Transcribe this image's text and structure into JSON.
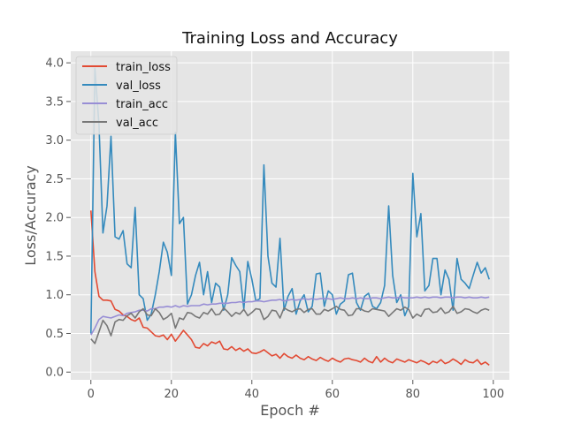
{
  "chart_data": {
    "type": "line",
    "title": "Training Loss and Accuracy",
    "xlabel": "Epoch #",
    "ylabel": "Loss/Accuracy",
    "xlim": [
      -5,
      104
    ],
    "ylim": [
      -0.1,
      4.15
    ],
    "xticks": [
      0,
      20,
      40,
      60,
      80,
      100
    ],
    "yticks": [
      0.0,
      0.5,
      1.0,
      1.5,
      2.0,
      2.5,
      3.0,
      3.5,
      4.0
    ],
    "ytick_labels": [
      "0.0",
      "0.5",
      "1.0",
      "1.5",
      "2.0",
      "2.5",
      "3.0",
      "3.5",
      "4.0"
    ],
    "grid": true,
    "legend_position": "top-left",
    "x": [
      0,
      1,
      2,
      3,
      4,
      5,
      6,
      7,
      8,
      9,
      10,
      11,
      12,
      13,
      14,
      15,
      16,
      17,
      18,
      19,
      20,
      21,
      22,
      23,
      24,
      25,
      26,
      27,
      28,
      29,
      30,
      31,
      32,
      33,
      34,
      35,
      36,
      37,
      38,
      39,
      40,
      41,
      42,
      43,
      44,
      45,
      46,
      47,
      48,
      49,
      50,
      51,
      52,
      53,
      54,
      55,
      56,
      57,
      58,
      59,
      60,
      61,
      62,
      63,
      64,
      65,
      66,
      67,
      68,
      69,
      70,
      71,
      72,
      73,
      74,
      75,
      76,
      77,
      78,
      79,
      80,
      81,
      82,
      83,
      84,
      85,
      86,
      87,
      88,
      89,
      90,
      91,
      92,
      93,
      94,
      95,
      96,
      97,
      98,
      99
    ],
    "series": [
      {
        "name": "train_loss",
        "color": "#E24A33",
        "values": [
          2.09,
          1.3,
          0.98,
          0.93,
          0.93,
          0.92,
          0.81,
          0.79,
          0.74,
          0.72,
          0.68,
          0.66,
          0.7,
          0.58,
          0.57,
          0.52,
          0.47,
          0.46,
          0.48,
          0.42,
          0.49,
          0.4,
          0.47,
          0.54,
          0.48,
          0.42,
          0.32,
          0.31,
          0.37,
          0.34,
          0.39,
          0.37,
          0.4,
          0.3,
          0.29,
          0.33,
          0.28,
          0.31,
          0.27,
          0.3,
          0.25,
          0.24,
          0.26,
          0.29,
          0.25,
          0.21,
          0.23,
          0.18,
          0.24,
          0.2,
          0.18,
          0.22,
          0.18,
          0.16,
          0.2,
          0.17,
          0.15,
          0.19,
          0.16,
          0.14,
          0.18,
          0.15,
          0.13,
          0.17,
          0.18,
          0.16,
          0.15,
          0.13,
          0.18,
          0.14,
          0.12,
          0.2,
          0.13,
          0.18,
          0.14,
          0.12,
          0.17,
          0.15,
          0.13,
          0.16,
          0.14,
          0.12,
          0.15,
          0.13,
          0.1,
          0.14,
          0.12,
          0.16,
          0.11,
          0.13,
          0.17,
          0.14,
          0.1,
          0.16,
          0.13,
          0.12,
          0.16,
          0.1,
          0.13,
          0.09
        ]
      },
      {
        "name": "val_loss",
        "color": "#348ABD",
        "values": [
          0.5,
          3.93,
          3.2,
          1.8,
          2.15,
          3.05,
          1.75,
          1.72,
          1.83,
          1.4,
          1.35,
          2.13,
          1.0,
          0.95,
          0.67,
          0.75,
          1.0,
          1.3,
          1.68,
          1.55,
          1.25,
          3.1,
          1.92,
          2.0,
          0.88,
          1.0,
          1.25,
          1.42,
          1.0,
          1.3,
          0.9,
          1.15,
          1.1,
          0.8,
          1.0,
          1.48,
          1.38,
          1.3,
          0.82,
          1.43,
          1.2,
          0.92,
          0.95,
          2.68,
          1.5,
          1.15,
          1.1,
          1.73,
          0.8,
          0.98,
          1.08,
          0.75,
          0.92,
          1.0,
          0.78,
          0.85,
          1.27,
          1.28,
          0.85,
          1.05,
          1.0,
          0.75,
          0.88,
          0.92,
          1.26,
          1.28,
          0.9,
          0.8,
          0.98,
          1.02,
          0.85,
          0.82,
          0.9,
          1.12,
          2.15,
          1.25,
          0.9,
          1.0,
          0.73,
          0.85,
          2.57,
          1.75,
          2.05,
          1.05,
          1.12,
          1.47,
          1.47,
          1.0,
          1.32,
          1.2,
          0.8,
          1.47,
          1.2,
          1.15,
          1.08,
          1.25,
          1.42,
          1.28,
          1.35,
          1.2
        ]
      },
      {
        "name": "train_acc",
        "color": "#988ED5",
        "values": [
          0.48,
          0.57,
          0.68,
          0.72,
          0.71,
          0.7,
          0.72,
          0.74,
          0.73,
          0.76,
          0.77,
          0.78,
          0.8,
          0.8,
          0.79,
          0.82,
          0.82,
          0.84,
          0.84,
          0.85,
          0.84,
          0.86,
          0.84,
          0.86,
          0.85,
          0.86,
          0.86,
          0.86,
          0.88,
          0.87,
          0.88,
          0.88,
          0.89,
          0.89,
          0.89,
          0.9,
          0.9,
          0.91,
          0.9,
          0.91,
          0.91,
          0.92,
          0.92,
          0.91,
          0.92,
          0.93,
          0.93,
          0.94,
          0.92,
          0.93,
          0.94,
          0.93,
          0.94,
          0.95,
          0.94,
          0.95,
          0.94,
          0.95,
          0.95,
          0.95,
          0.94,
          0.95,
          0.96,
          0.95,
          0.95,
          0.96,
          0.95,
          0.96,
          0.95,
          0.95,
          0.96,
          0.96,
          0.95,
          0.96,
          0.97,
          0.96,
          0.96,
          0.97,
          0.96,
          0.96,
          0.96,
          0.97,
          0.96,
          0.97,
          0.96,
          0.97,
          0.97,
          0.96,
          0.97,
          0.97,
          0.96,
          0.97,
          0.97,
          0.96,
          0.97,
          0.96,
          0.96,
          0.97,
          0.96,
          0.97
        ]
      },
      {
        "name": "val_acc",
        "color": "#777777",
        "values": [
          0.43,
          0.37,
          0.52,
          0.67,
          0.6,
          0.47,
          0.65,
          0.68,
          0.67,
          0.73,
          0.76,
          0.7,
          0.78,
          0.82,
          0.74,
          0.73,
          0.82,
          0.77,
          0.68,
          0.71,
          0.76,
          0.57,
          0.7,
          0.68,
          0.77,
          0.76,
          0.72,
          0.7,
          0.77,
          0.75,
          0.82,
          0.74,
          0.75,
          0.83,
          0.78,
          0.72,
          0.77,
          0.75,
          0.81,
          0.73,
          0.77,
          0.82,
          0.81,
          0.68,
          0.72,
          0.8,
          0.79,
          0.7,
          0.83,
          0.8,
          0.78,
          0.81,
          0.82,
          0.77,
          0.81,
          0.82,
          0.75,
          0.75,
          0.81,
          0.79,
          0.82,
          0.85,
          0.81,
          0.8,
          0.73,
          0.74,
          0.82,
          0.82,
          0.79,
          0.78,
          0.82,
          0.81,
          0.8,
          0.79,
          0.72,
          0.77,
          0.82,
          0.8,
          0.84,
          0.81,
          0.7,
          0.75,
          0.72,
          0.81,
          0.82,
          0.77,
          0.78,
          0.83,
          0.76,
          0.78,
          0.85,
          0.76,
          0.78,
          0.82,
          0.81,
          0.78,
          0.76,
          0.8,
          0.82,
          0.8
        ]
      }
    ]
  }
}
